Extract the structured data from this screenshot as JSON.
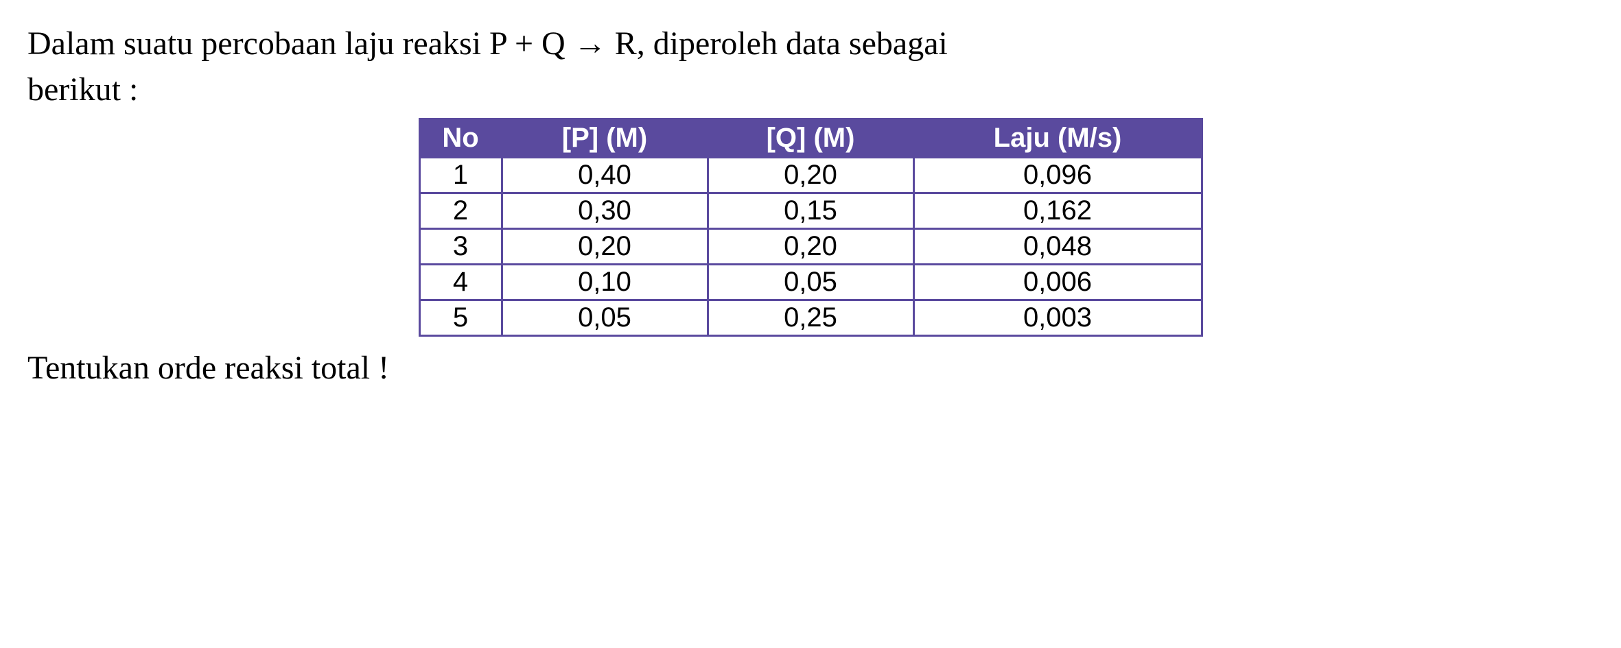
{
  "intro": {
    "line1": "Dalam suatu percobaan laju reaksi P + Q → R, diperoleh data sebagai",
    "line2": "berikut :"
  },
  "table": {
    "columns": [
      "No",
      "[P] (M)",
      "[Q] (M)",
      "Laju (M/s)"
    ],
    "rows": [
      [
        "1",
        "0,40",
        "0,20",
        "0,096"
      ],
      [
        "2",
        "0,30",
        "0,15",
        "0,162"
      ],
      [
        "3",
        "0,20",
        "0,20",
        "0,048"
      ],
      [
        "4",
        "0,10",
        "0,05",
        "0,006"
      ],
      [
        "5",
        "0,05",
        "0,25",
        "0,003"
      ]
    ],
    "header_bg": "#5a4a9e",
    "header_text_color": "#ffffff",
    "cell_bg": "#ffffff",
    "cell_text_color": "#000000",
    "border_color": "#5a4a9e",
    "header_font_family": "Verdana",
    "header_font_weight": "bold",
    "cell_font_family": "Verdana",
    "column_alignment": [
      "center",
      "center",
      "center",
      "center"
    ]
  },
  "closing": "Tentukan orde reaksi total !"
}
